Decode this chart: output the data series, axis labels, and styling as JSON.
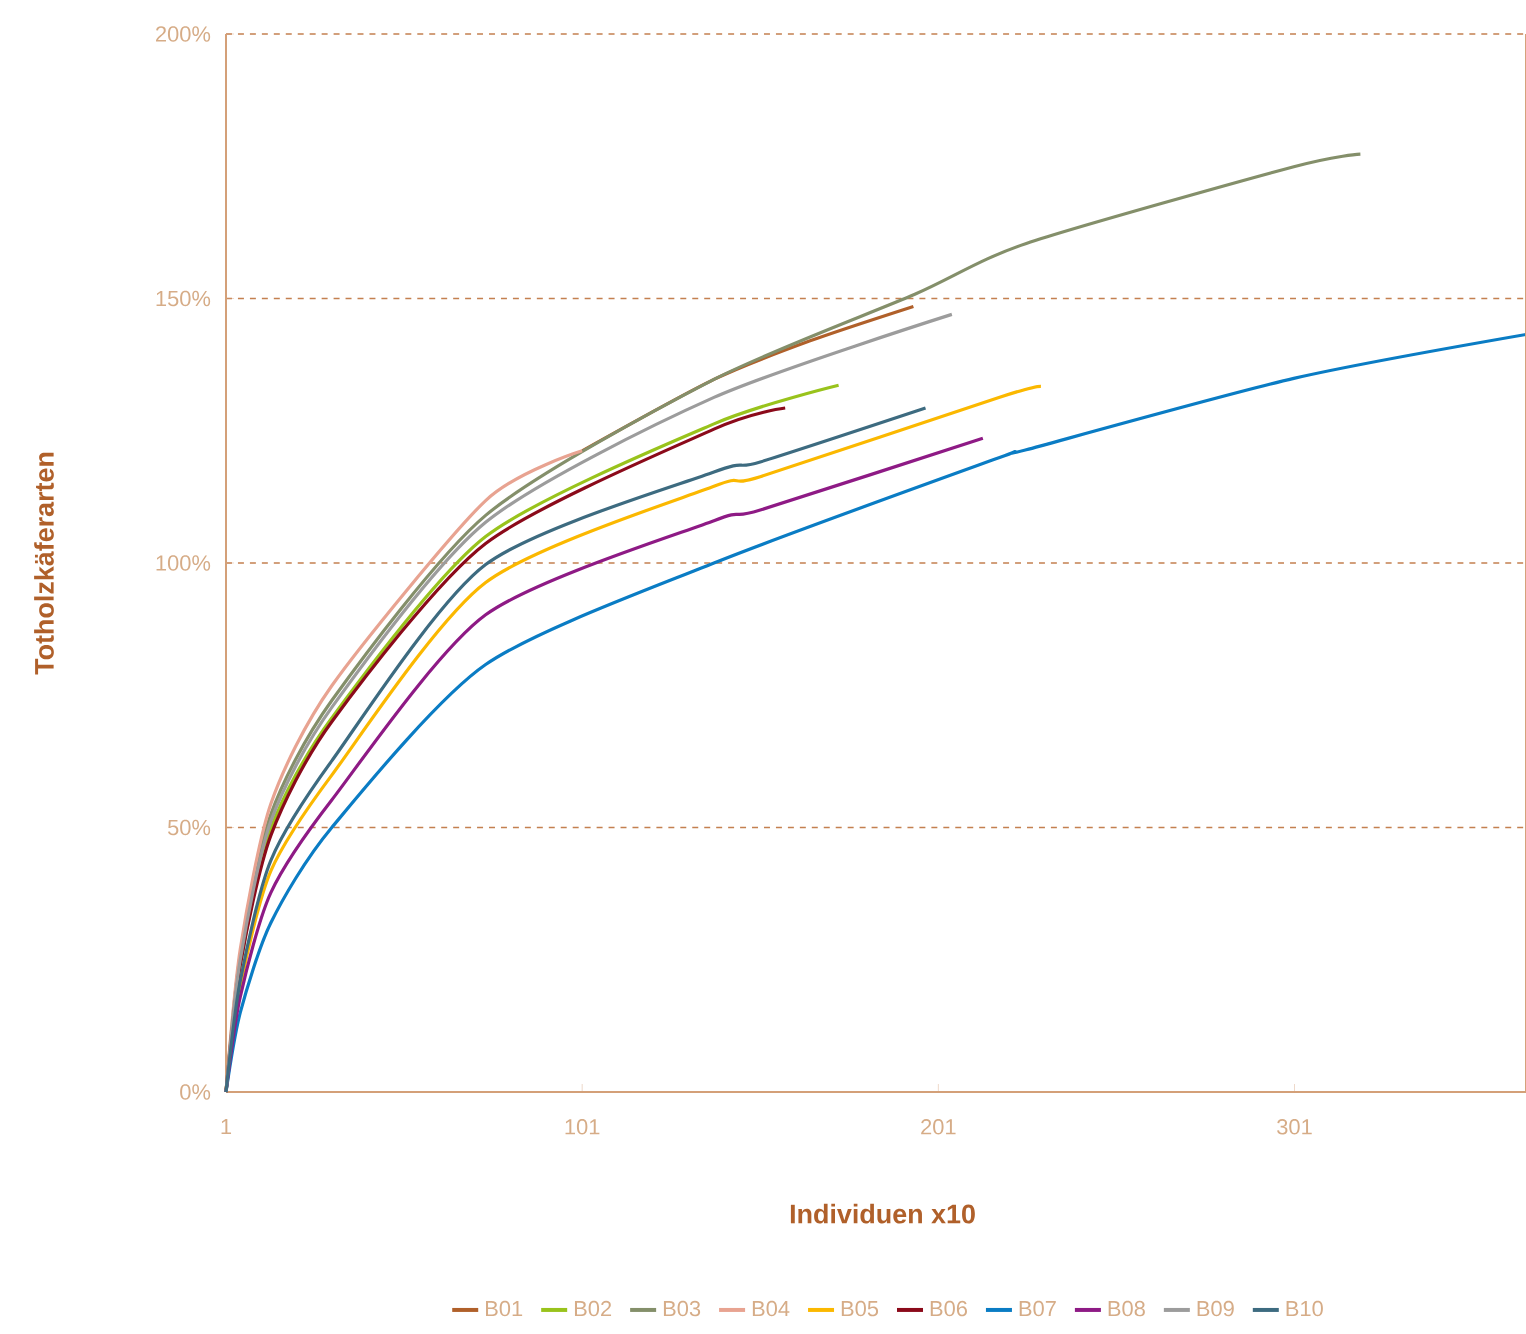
{
  "chart_data": {
    "type": "line",
    "xlabel": "Individuen x10",
    "ylabel": "Totholzkäferarten",
    "xlim": [
      1,
      366
    ],
    "xticks": [
      1,
      101,
      201,
      301
    ],
    "ylim": [
      0,
      200
    ],
    "yticks": [
      {
        "value": 0,
        "label": "0%"
      },
      {
        "value": 50,
        "label": "50%"
      },
      {
        "value": 100,
        "label": "100%"
      },
      {
        "value": 150,
        "label": "150%"
      },
      {
        "value": 200,
        "label": "200%"
      }
    ],
    "grid": "y",
    "legend": "bottom",
    "marker": "none",
    "line_style": "solid",
    "series": [
      {
        "name": "B01",
        "color": "#b0602a",
        "x": [
          101,
          138,
          165,
          194
        ],
        "values": [
          121.2,
          134.7,
          142,
          148.5
        ]
      },
      {
        "name": "B02",
        "color": "#99c31c",
        "x": [
          1,
          5,
          13.6,
          30.7,
          73.9,
          138,
          173
        ],
        "values": [
          0,
          24,
          49.8,
          70.7,
          105,
          126.3,
          133.6
        ]
      },
      {
        "name": "B03",
        "color": "#848f6a",
        "x": [
          1,
          5,
          13.6,
          30.7,
          73.9,
          138,
          194.4,
          225.7,
          300.8,
          319.5
        ],
        "values": [
          0,
          26,
          52.5,
          74,
          109,
          134.7,
          150.8,
          160.4,
          174.9,
          177.3
        ]
      },
      {
        "name": "B04",
        "color": "#e8a391",
        "x": [
          1,
          5,
          13.6,
          30.7,
          73.9,
          101
        ],
        "values": [
          0,
          27,
          54.5,
          76.8,
          111.8,
          121.2
        ]
      },
      {
        "name": "B05",
        "color": "#fbb800",
        "x": [
          1,
          5,
          13.6,
          30.7,
          73.9,
          138,
          151,
          218,
          229.8
        ],
        "values": [
          0,
          20,
          41.8,
          59.9,
          96.3,
          114.5,
          116.3,
          131.3,
          133.4
        ]
      },
      {
        "name": "B06",
        "color": "#8b0a1a",
        "x": [
          1,
          5,
          13.6,
          30.7,
          73.9,
          138,
          158
        ],
        "values": [
          0,
          24,
          48.5,
          70,
          103.7,
          125.3,
          129.3
        ]
      },
      {
        "name": "B07",
        "color": "#0a7cc4",
        "x": [
          1,
          5,
          13.6,
          30.7,
          73.9,
          138,
          218,
          225.7,
          300.8,
          366
        ],
        "values": [
          0,
          15,
          32,
          50,
          80.8,
          100,
          119.9,
          121.4,
          134.9,
          143.2
        ]
      },
      {
        "name": "B08",
        "color": "#8e1a85",
        "x": [
          1,
          5,
          13.6,
          30.7,
          73.9,
          138,
          151,
          213.5
        ],
        "values": [
          0,
          18,
          37.7,
          55.2,
          90.2,
          108,
          110,
          123.6
        ]
      },
      {
        "name": "B09",
        "color": "#9c9c9c",
        "x": [
          1,
          5,
          13.6,
          30.7,
          73.9,
          138,
          204.8
        ],
        "values": [
          0,
          25,
          51.2,
          72.7,
          107.7,
          131.3,
          147
        ]
      },
      {
        "name": "B10",
        "color": "#3d6b80",
        "x": [
          1,
          5,
          13.6,
          30.7,
          73.9,
          138,
          151,
          197.4
        ],
        "values": [
          0,
          21,
          43.8,
          62.6,
          99.7,
          117.2,
          119.1,
          129.3
        ]
      }
    ]
  }
}
